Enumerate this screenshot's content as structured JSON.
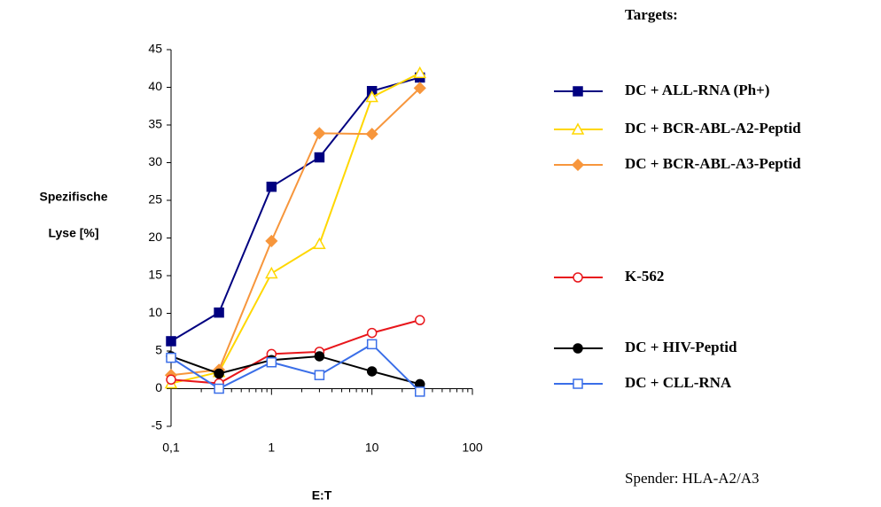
{
  "chart_data": {
    "type": "line",
    "x_label": "E:T",
    "y_label": [
      "Spezifische",
      "Lyse [%]"
    ],
    "legend_title": "Targets:",
    "note": "Spender: HLA-A2/A3",
    "x": [
      0.1,
      0.3,
      1,
      3,
      10,
      30
    ],
    "xscale": "log",
    "xlim": [
      0.1,
      100
    ],
    "xticks": [
      {
        "value": 0.1,
        "label": "0,1"
      },
      1,
      10,
      100
    ],
    "ylim": [
      -5,
      45
    ],
    "yticks": [
      -5,
      0,
      5,
      10,
      15,
      20,
      25,
      30,
      35,
      40,
      45
    ],
    "series": [
      {
        "name": "DC + ALL-RNA (Ph+)",
        "color": "#000080",
        "marker": "square",
        "filled": true,
        "values": [
          6.3,
          10.1,
          26.8,
          30.7,
          39.5,
          41.3
        ]
      },
      {
        "name": "DC + BCR-ABL-A2-Peptid",
        "color": "#ffd700",
        "marker": "triangle",
        "filled": false,
        "values": [
          0.7,
          2.2,
          15.3,
          19.2,
          38.7,
          41.9
        ]
      },
      {
        "name": "DC + BCR-ABL-A3-Peptid",
        "color": "#f7963c",
        "marker": "diamond",
        "filled": true,
        "values": [
          1.8,
          2.5,
          19.6,
          33.9,
          33.8,
          39.9
        ]
      },
      {
        "name": "K-562",
        "color": "#e8161b",
        "marker": "circle",
        "filled": false,
        "values": [
          1.2,
          0.7,
          4.6,
          4.9,
          7.4,
          9.1
        ]
      },
      {
        "name": "DC + HIV-Peptid",
        "color": "#000000",
        "marker": "circle",
        "filled": true,
        "values": [
          4.3,
          2.0,
          3.8,
          4.3,
          2.3,
          0.6
        ]
      },
      {
        "name": "DC + CLL-RNA",
        "color": "#3a6ee8",
        "marker": "square",
        "filled": false,
        "values": [
          4.1,
          0.0,
          3.5,
          1.8,
          5.9,
          -0.4
        ]
      }
    ]
  }
}
